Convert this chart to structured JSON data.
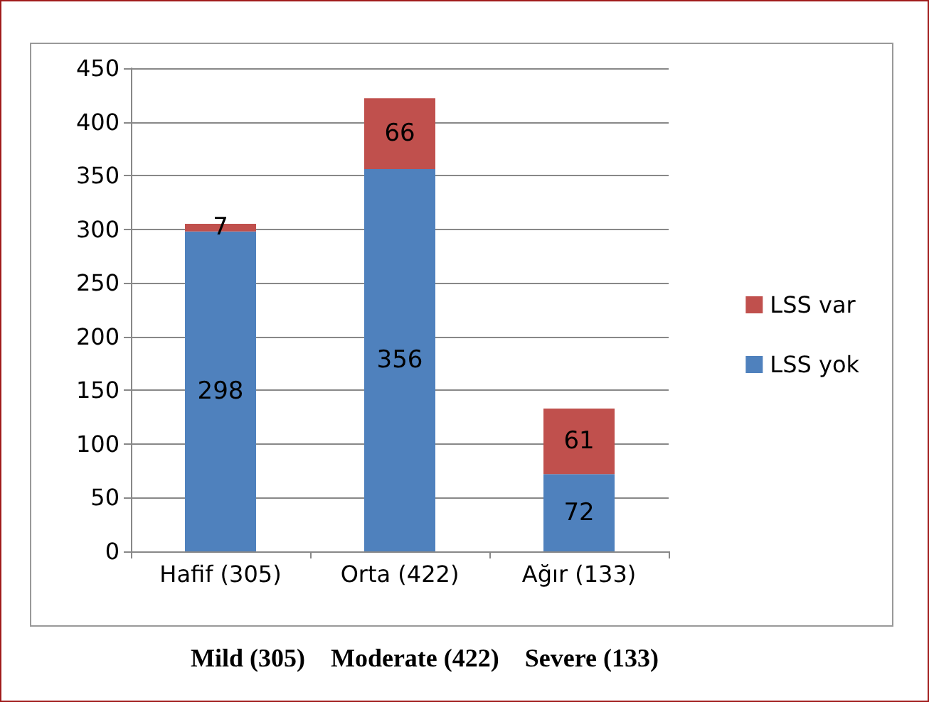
{
  "chart_data": {
    "type": "bar",
    "stacked": true,
    "categories": [
      "Hafif (305)",
      "Orta (422)",
      "Ağır (133)"
    ],
    "series": [
      {
        "name": "LSS yok",
        "color": "#4f81bd",
        "values": [
          298,
          356,
          72
        ]
      },
      {
        "name": "LSS var",
        "color": "#c0504d",
        "values": [
          7,
          66,
          61
        ]
      }
    ],
    "ylim": [
      0,
      450
    ],
    "yticks": [
      0,
      50,
      100,
      150,
      200,
      250,
      300,
      350,
      400,
      450
    ],
    "grid": "y",
    "legend": "right",
    "data_labels": true,
    "annotations": [
      "Mild (305)",
      "Moderate (422)",
      "Severe (133)"
    ]
  }
}
